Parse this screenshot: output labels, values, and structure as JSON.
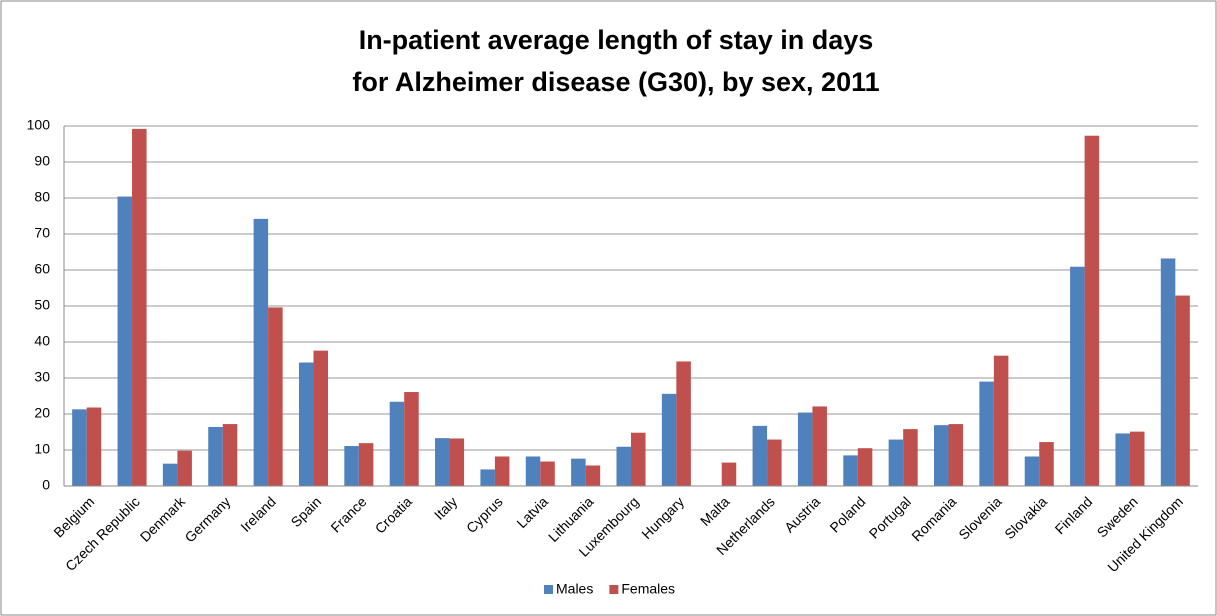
{
  "chart_data": {
    "type": "bar",
    "title": [
      "In-patient average length of stay in days",
      "for Alzheimer disease (G30), by sex, 2011"
    ],
    "categories": [
      "Belgium",
      "Czech Republic",
      "Denmark",
      "Germany",
      "Ireland",
      "Spain",
      "France",
      "Croatia",
      "Italy",
      "Cyprus",
      "Latvia",
      "Lithuania",
      "Luxembourg",
      "Hungary",
      "Malta",
      "Netherlands",
      "Austria",
      "Poland",
      "Portugal",
      "Romania",
      "Slovenia",
      "Slovakia",
      "Finland",
      "Sweden",
      "United Kingdom"
    ],
    "series": [
      {
        "name": "Males",
        "color": "#4f81bd",
        "values": [
          21.3,
          80.4,
          6.2,
          16.4,
          74.2,
          34.3,
          11.1,
          23.4,
          13.3,
          4.6,
          8.2,
          7.6,
          10.9,
          25.6,
          null,
          16.7,
          20.4,
          8.5,
          12.9,
          16.9,
          29.0,
          8.2,
          60.9,
          14.6,
          63.2
        ]
      },
      {
        "name": "Females",
        "color": "#c0504d",
        "values": [
          21.8,
          99.2,
          9.8,
          17.2,
          49.6,
          37.6,
          11.9,
          26.1,
          13.2,
          8.2,
          6.8,
          5.7,
          14.8,
          34.6,
          6.5,
          12.9,
          22.1,
          10.5,
          15.8,
          17.2,
          36.2,
          12.2,
          97.3,
          15.1,
          52.9
        ]
      }
    ],
    "ylim": [
      0,
      100
    ],
    "yticks": [
      0,
      10,
      20,
      30,
      40,
      50,
      60,
      70,
      80,
      90,
      100
    ],
    "grid": true,
    "legend": "bottom"
  }
}
